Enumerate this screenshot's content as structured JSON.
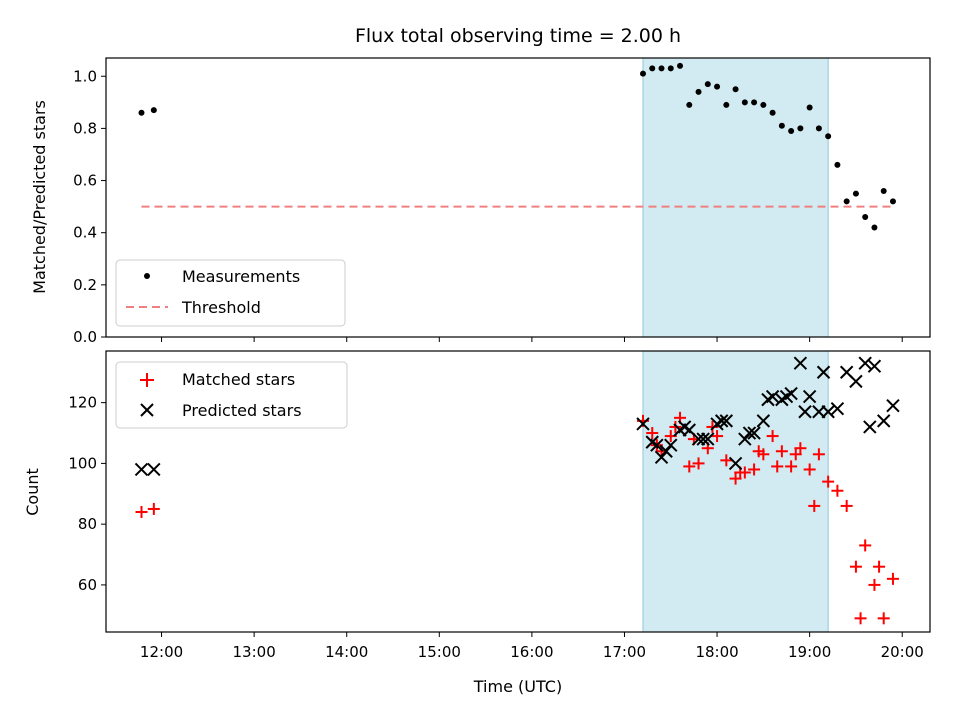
{
  "chart_data": [
    {
      "type": "scatter",
      "title": "Flux total observing time = 2.00 h",
      "ylabel": "Matched/Predicted stars",
      "xlabel": "",
      "ylim": [
        0,
        1.07
      ],
      "yticks": [
        0.0,
        0.2,
        0.4,
        0.6,
        0.8,
        1.0
      ],
      "ytick_labels": [
        "0.0",
        "0.2",
        "0.4",
        "0.6",
        "0.8",
        "1.0"
      ],
      "xlim": [
        "11:24",
        "20:18"
      ],
      "shaded_interval": [
        "17:12",
        "19:12"
      ],
      "legend_position": "lower-left",
      "series": [
        {
          "name": "Measurements",
          "marker": "dot",
          "color": "#000000",
          "x": [
            "11:47",
            "11:55",
            "17:12",
            "17:18",
            "17:24",
            "17:30",
            "17:36",
            "17:42",
            "17:48",
            "17:54",
            "18:00",
            "18:06",
            "18:12",
            "18:18",
            "18:24",
            "18:30",
            "18:36",
            "18:42",
            "18:48",
            "18:54",
            "19:00",
            "19:06",
            "19:12",
            "19:18",
            "19:24",
            "19:30",
            "19:36",
            "19:42",
            "19:48",
            "19:54"
          ],
          "y": [
            0.86,
            0.87,
            1.01,
            1.03,
            1.03,
            1.03,
            1.04,
            0.89,
            0.94,
            0.97,
            0.96,
            0.89,
            0.95,
            0.9,
            0.9,
            0.89,
            0.86,
            0.81,
            0.79,
            0.8,
            0.88,
            0.8,
            0.77,
            0.66,
            0.52,
            0.55,
            0.46,
            0.42,
            0.56,
            0.52
          ]
        },
        {
          "name": "Threshold",
          "marker": "dashed-line",
          "color": "#f08080",
          "x": [
            "11:47",
            "19:54"
          ],
          "y": [
            0.5,
            0.5
          ]
        }
      ]
    },
    {
      "type": "scatter",
      "title": "",
      "ylabel": "Count",
      "xlabel": "Time (UTC)",
      "ylim": [
        44.5,
        137
      ],
      "yticks": [
        60,
        80,
        100,
        120
      ],
      "ytick_labels": [
        "60",
        "80",
        "100",
        "120"
      ],
      "xlim": [
        "11:24",
        "20:18"
      ],
      "xticks": [
        "12:00",
        "13:00",
        "14:00",
        "15:00",
        "16:00",
        "17:00",
        "18:00",
        "19:00",
        "20:00"
      ],
      "shaded_interval": [
        "17:12",
        "19:12"
      ],
      "legend_position": "upper-left",
      "series": [
        {
          "name": "Matched stars",
          "marker": "plus",
          "color": "#ff0000",
          "x": [
            "11:47",
            "11:55",
            "17:12",
            "17:18",
            "17:24",
            "17:30",
            "17:36",
            "17:42",
            "17:48",
            "17:54",
            "18:00",
            "18:06",
            "18:12",
            "18:18",
            "18:24",
            "18:30",
            "18:36",
            "18:42",
            "18:48",
            "18:54",
            "19:00",
            "19:06",
            "19:12",
            "19:18",
            "19:24",
            "19:30",
            "19:36",
            "19:42",
            "19:48",
            "19:54",
            "17:21",
            "17:33",
            "17:45",
            "17:57",
            "18:15",
            "18:27",
            "18:39",
            "18:51",
            "19:03",
            "19:33",
            "19:45"
          ],
          "y": [
            84,
            85,
            114,
            110,
            104,
            109,
            115,
            99,
            100,
            105,
            109,
            101,
            95,
            97,
            98,
            103,
            109,
            104,
            99,
            105,
            98,
            103,
            94,
            91,
            86,
            66,
            73,
            60,
            49,
            62,
            106,
            112,
            108,
            112,
            97,
            104,
            99,
            103,
            86,
            49,
            66
          ]
        },
        {
          "name": "Predicted stars",
          "marker": "x",
          "color": "#000000",
          "x": [
            "11:47",
            "11:55",
            "17:12",
            "17:18",
            "17:24",
            "17:30",
            "17:36",
            "17:42",
            "17:48",
            "17:54",
            "18:00",
            "18:06",
            "18:12",
            "18:18",
            "18:24",
            "18:30",
            "18:36",
            "18:42",
            "18:48",
            "18:54",
            "19:00",
            "19:06",
            "19:12",
            "19:18",
            "19:24",
            "19:30",
            "19:36",
            "19:42",
            "19:48",
            "19:54",
            "17:21",
            "17:27",
            "17:39",
            "17:51",
            "18:03",
            "18:21",
            "18:33",
            "18:45",
            "18:57",
            "19:09",
            "19:39"
          ],
          "y": [
            98,
            98,
            113,
            107,
            102,
            106,
            111,
            111,
            108,
            108,
            113,
            114,
            100,
            108,
            110,
            114,
            122,
            121,
            123,
            133,
            122,
            117,
            117,
            118,
            130,
            127,
            133,
            132,
            114,
            119,
            106,
            104,
            112,
            108,
            114,
            110,
            121,
            122,
            117,
            130,
            112
          ]
        }
      ]
    }
  ]
}
